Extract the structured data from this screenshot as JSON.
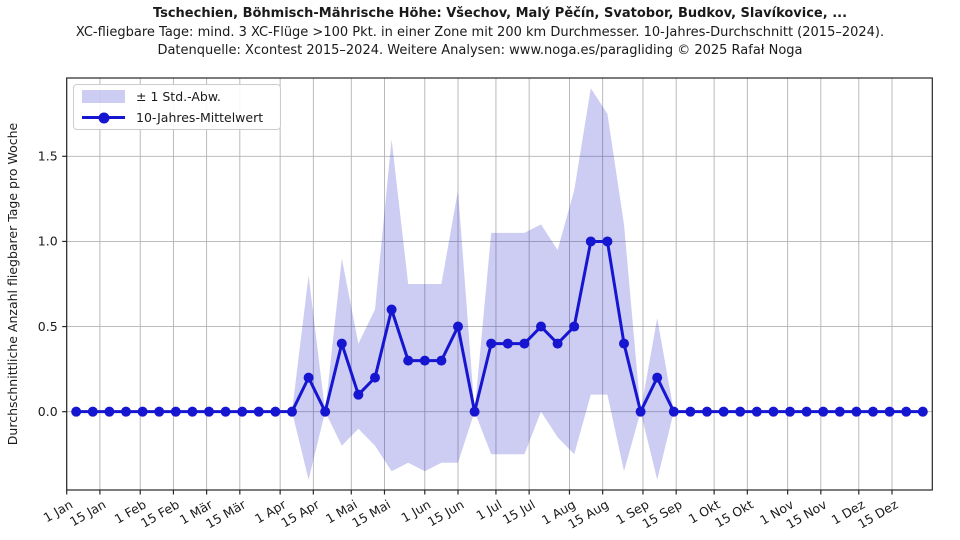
{
  "chart_data": {
    "type": "line",
    "title": "Tschechien, Böhmisch-Mährische Höhe: Všechov, Malý Pěčín, Svatobor, Budkov, Slavíkovice, ...",
    "subtitle": "XC-fliegbare Tage: mind. 3 XC-Flüge >100 Pkt. in einer Zone mit 200 km Durchmesser. 10-Jahres-Durchschnitt (2015–2024).",
    "source": "Datenquelle: Xcontest 2015–2024. Weitere Analysen: www.noga.es/paragliding © 2025 Rafał Noga",
    "ylabel": "Durchschnittliche Anzahl fliegbarer Tage pro Woche",
    "legend": {
      "band": "± 1 Std.-Abw.",
      "line": "10-Jahres-Mittelwert"
    },
    "grid": true,
    "legend_position": "upper-left",
    "ylim": [
      -0.46,
      1.96
    ],
    "yticks": [
      {
        "value": 0.0,
        "label": "0.0"
      },
      {
        "value": 0.5,
        "label": "0.5"
      },
      {
        "value": 1.0,
        "label": "1.0"
      },
      {
        "value": 1.5,
        "label": "1.5"
      }
    ],
    "x_range_days": [
      0,
      365
    ],
    "x_ticks": [
      {
        "label": "1 Jan",
        "day": 0
      },
      {
        "label": "15 Jan",
        "day": 14
      },
      {
        "label": "1 Feb",
        "day": 31
      },
      {
        "label": "15 Feb",
        "day": 45
      },
      {
        "label": "1 Mär",
        "day": 59
      },
      {
        "label": "15 Mär",
        "day": 73
      },
      {
        "label": "1 Apr",
        "day": 90
      },
      {
        "label": "15 Apr",
        "day": 104
      },
      {
        "label": "1 Mai",
        "day": 120
      },
      {
        "label": "15 Mai",
        "day": 134
      },
      {
        "label": "1 Jun",
        "day": 151
      },
      {
        "label": "15 Jun",
        "day": 165
      },
      {
        "label": "1 Jul",
        "day": 181
      },
      {
        "label": "15 Jul",
        "day": 195
      },
      {
        "label": "1 Aug",
        "day": 212
      },
      {
        "label": "15 Aug",
        "day": 226
      },
      {
        "label": "1 Sep",
        "day": 243
      },
      {
        "label": "15 Sep",
        "day": 257
      },
      {
        "label": "1 Okt",
        "day": 273
      },
      {
        "label": "15 Okt",
        "day": 287
      },
      {
        "label": "1 Nov",
        "day": 304
      },
      {
        "label": "15 Nov",
        "day": 318
      },
      {
        "label": "1 Dez",
        "day": 334
      },
      {
        "label": "15 Dez",
        "day": 348
      }
    ],
    "weekly": {
      "first_point_day": 4,
      "interval_days": 7,
      "mean": [
        0,
        0,
        0,
        0,
        0,
        0,
        0,
        0,
        0,
        0,
        0,
        0,
        0,
        0,
        0.2,
        0,
        0.4,
        0.1,
        0.2,
        0.6,
        0.3,
        0.3,
        0.3,
        0.5,
        0,
        0.4,
        0.4,
        0.4,
        0.5,
        0.4,
        0.5,
        1.0,
        1.0,
        0.4,
        0,
        0.2,
        0,
        0,
        0,
        0,
        0,
        0,
        0,
        0,
        0,
        0,
        0,
        0,
        0,
        0,
        0,
        0
      ],
      "band_lower": [
        0,
        0,
        0,
        0,
        0,
        0,
        0,
        0,
        0,
        0,
        0,
        0,
        0,
        0,
        -0.4,
        0,
        -0.2,
        -0.1,
        -0.2,
        -0.35,
        -0.3,
        -0.35,
        -0.3,
        -0.3,
        0,
        -0.25,
        -0.25,
        -0.25,
        0,
        -0.15,
        -0.25,
        0.1,
        0.1,
        -0.35,
        0,
        -0.4,
        0,
        0,
        0,
        0,
        0,
        0,
        0,
        0,
        0,
        0,
        0,
        0,
        0,
        0,
        0,
        0
      ],
      "band_upper": [
        0,
        0,
        0,
        0,
        0,
        0,
        0,
        0,
        0,
        0,
        0,
        0,
        0,
        0,
        0.8,
        0,
        0.9,
        0.4,
        0.6,
        1.6,
        0.75,
        0.75,
        0.75,
        1.3,
        0,
        1.05,
        1.05,
        1.05,
        1.1,
        0.95,
        1.3,
        1.9,
        1.75,
        1.1,
        0,
        0.55,
        0,
        0,
        0,
        0,
        0,
        0,
        0,
        0,
        0,
        0,
        0,
        0,
        0,
        0,
        0,
        0
      ]
    },
    "colors": {
      "line": "#1616d0",
      "band": "#1414cc",
      "band_opacity": 0.21,
      "grid": "#b3b3b3",
      "spine": "#262626",
      "text": "#1a1a1a"
    }
  }
}
